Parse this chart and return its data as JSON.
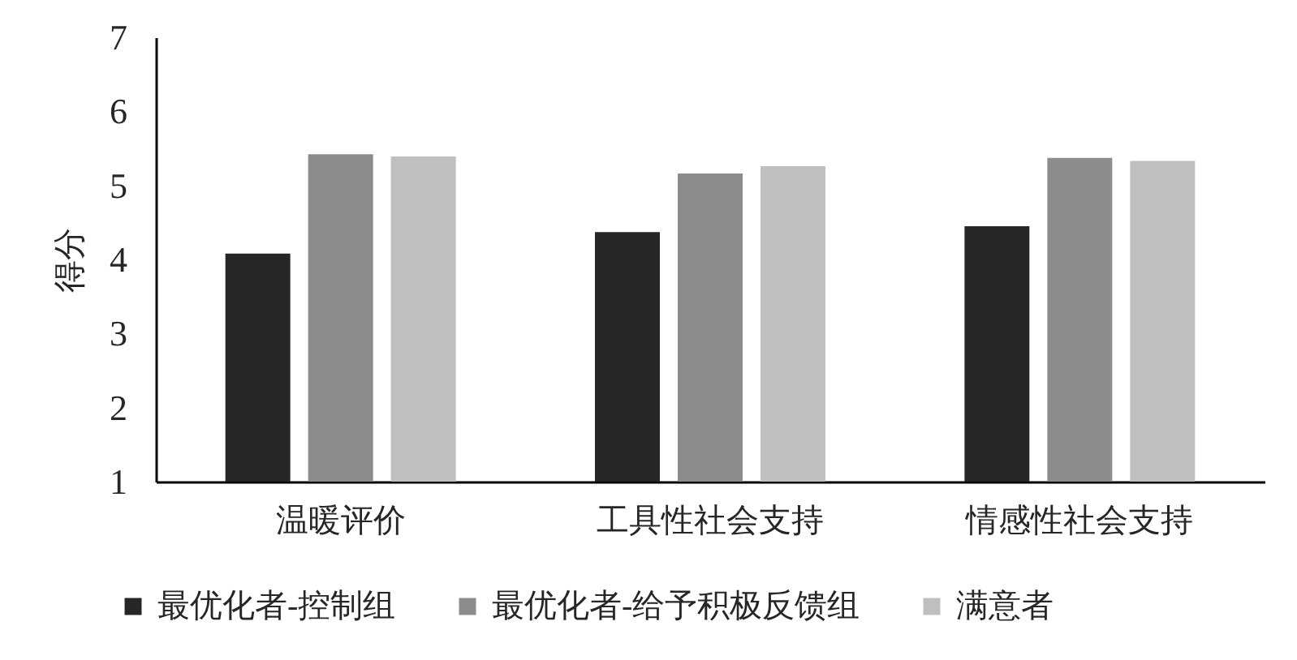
{
  "chart_data": {
    "type": "bar",
    "ylabel": "得分",
    "categories": [
      "温暖评价",
      "工具性社会支持",
      "情感性社会支持"
    ],
    "series": [
      {
        "name": "最优化者-控制组",
        "color": "#262626",
        "values": [
          4.08,
          4.37,
          4.45
        ]
      },
      {
        "name": "最优化者-给予积极反馈组",
        "color": "#8c8c8c",
        "values": [
          5.42,
          5.16,
          5.37
        ]
      },
      {
        "name": "满意者",
        "color": "#bfbfbf",
        "values": [
          5.39,
          5.26,
          5.33
        ]
      }
    ],
    "ylim": [
      1,
      7
    ],
    "yticks": [
      1,
      2,
      3,
      4,
      5,
      6,
      7
    ],
    "legend": "bottom"
  }
}
